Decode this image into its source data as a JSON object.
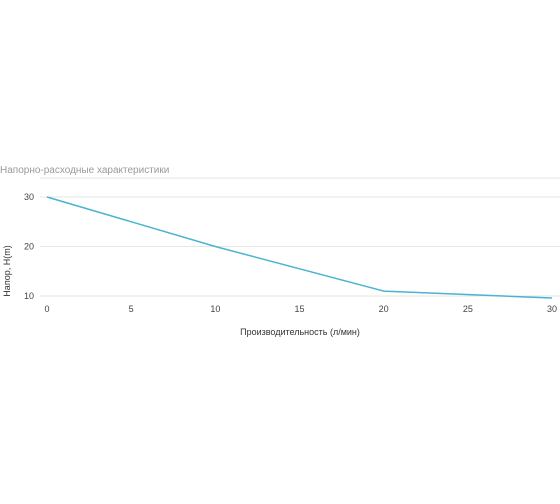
{
  "chart_data": {
    "type": "line",
    "title": "Напорно-расходные характеристики",
    "xlabel": "Производительность (л/мин)",
    "ylabel": "Напор, H(m)",
    "xlim": [
      0,
      30
    ],
    "ylim": [
      10,
      30
    ],
    "x_ticks": [
      0,
      5,
      10,
      15,
      20,
      25,
      30
    ],
    "y_ticks": [
      10,
      20,
      30
    ],
    "grid": true,
    "series": [
      {
        "color": "#4ab3d1",
        "points": [
          {
            "x": 0,
            "y": 30
          },
          {
            "x": 10,
            "y": 20
          },
          {
            "x": 20,
            "y": 11
          },
          {
            "x": 30,
            "y": 9.6
          }
        ]
      }
    ]
  }
}
